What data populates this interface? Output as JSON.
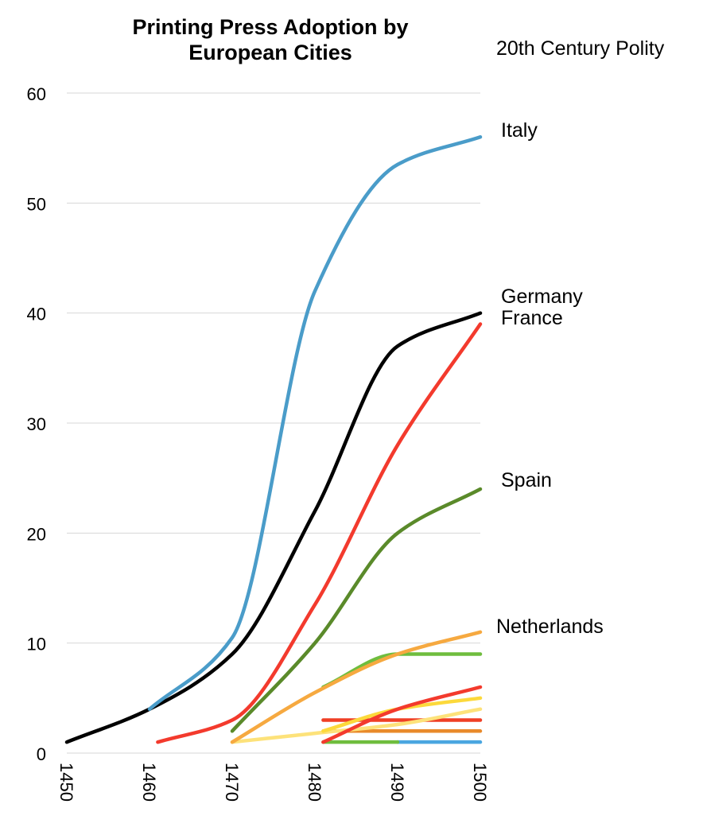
{
  "chart_data": {
    "type": "line",
    "title": "Printing Press Adoption by European Cities",
    "title_lines": [
      "Printing Press Adoption by",
      "European Cities"
    ],
    "legend_title": "20th Century Polity",
    "xlabel": "",
    "ylabel": "",
    "xlim": [
      1450,
      1500
    ],
    "ylim": [
      0,
      60
    ],
    "x_ticks": [
      1450,
      1460,
      1470,
      1480,
      1490,
      1500
    ],
    "y_ticks": [
      0,
      10,
      20,
      30,
      40,
      50,
      60
    ],
    "x_tick_rotation": "vertical",
    "grid": "horizontal",
    "legend": "labels at line ends (right)",
    "series": [
      {
        "name": "Italy",
        "color": "#4a9cc9",
        "x": [
          1460,
          1470,
          1480,
          1490,
          1500
        ],
        "y": [
          4,
          10.5,
          42,
          53.5,
          56
        ]
      },
      {
        "name": "Germany",
        "color": "#000000",
        "x": [
          1450,
          1460,
          1470,
          1480,
          1490,
          1500
        ],
        "y": [
          1,
          4,
          9,
          22,
          37,
          40
        ]
      },
      {
        "name": "France",
        "color": "#f33a2d",
        "x": [
          1461,
          1470,
          1480,
          1490,
          1500
        ],
        "y": [
          1,
          3,
          13.5,
          28,
          39
        ]
      },
      {
        "name": "Spain",
        "color": "#5a8a2a",
        "x": [
          1470,
          1480,
          1490,
          1500
        ],
        "y": [
          2,
          10,
          20,
          24
        ]
      },
      {
        "name": "Netherlands",
        "color": "#f6a940",
        "x": [
          1470,
          1480,
          1490,
          1500
        ],
        "y": [
          1,
          5.5,
          9,
          11
        ]
      },
      {
        "color": "#6fbd3e",
        "x": [
          1481,
          1490,
          1500
        ],
        "y": [
          6,
          9,
          9
        ]
      },
      {
        "color": "#f33a2d",
        "x": [
          1481,
          1490,
          1500
        ],
        "y": [
          1,
          4,
          6
        ]
      },
      {
        "color": "#fcd93b",
        "x": [
          1481,
          1490,
          1500
        ],
        "y": [
          2,
          4,
          5
        ]
      },
      {
        "color": "#fde27a",
        "x": [
          1470,
          1480,
          1490,
          1500
        ],
        "y": [
          1,
          1.8,
          2.6,
          4
        ]
      },
      {
        "color": "#ef3f25",
        "x": [
          1481,
          1490,
          1500
        ],
        "y": [
          3,
          3,
          3
        ]
      },
      {
        "color": "#e98a2a",
        "x": [
          1481,
          1490,
          1500
        ],
        "y": [
          2,
          2,
          2
        ]
      },
      {
        "color": "#6fbd3e",
        "x": [
          1481,
          1490
        ],
        "y": [
          1,
          1
        ]
      },
      {
        "color": "#4aa6e0",
        "x": [
          1490,
          1500
        ],
        "y": [
          1,
          1
        ]
      }
    ],
    "labels": [
      {
        "text": "Italy",
        "anchor_series": 0
      },
      {
        "text": "Germany",
        "anchor_series": 1
      },
      {
        "text": "France",
        "anchor_series": 2
      },
      {
        "text": "Spain",
        "anchor_series": 3
      },
      {
        "text": "Netherlands",
        "anchor_series": 4
      }
    ]
  }
}
